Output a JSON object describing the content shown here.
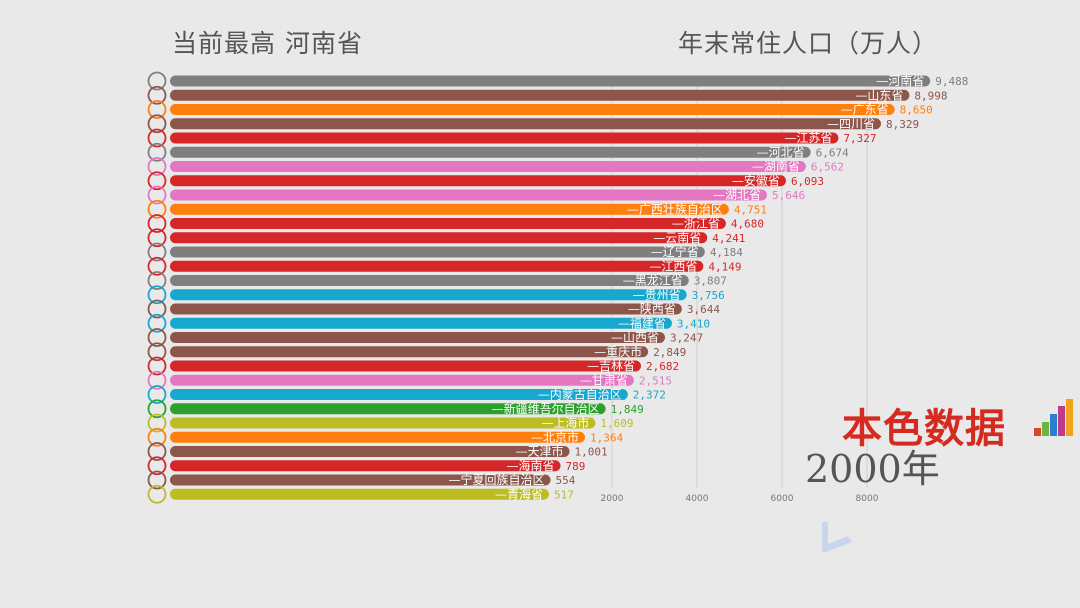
{
  "header": {
    "leader_label": "当前最高  河南省",
    "metric_title": "年末常住人口（万人）"
  },
  "brand": {
    "name": "本色数据",
    "icon": "bar-chart-logo-icon"
  },
  "period": {
    "label": "2000年"
  },
  "chart_data": {
    "type": "bar",
    "orientation": "horizontal",
    "title": "年末常住人口（万人）",
    "year": "2000年",
    "categories": [
      "河南省",
      "山东省",
      "广东省",
      "四川省",
      "江苏省",
      "河北省",
      "湖南省",
      "安徽省",
      "湖北省",
      "广西壮族自治区",
      "浙江省",
      "云南省",
      "辽宁省",
      "江西省",
      "黑龙江省",
      "贵州省",
      "陕西省",
      "福建省",
      "山西省",
      "重庆市",
      "吉林省",
      "甘肃省",
      "内蒙古自治区",
      "新疆维吾尔自治区",
      "上海市",
      "北京市",
      "天津市",
      "海南省",
      "宁夏回族自治区",
      "青海省"
    ],
    "values": [
      9488,
      8998,
      8650,
      8329,
      7327,
      6674,
      6562,
      6093,
      5646,
      4751,
      4680,
      4241,
      4184,
      4149,
      3807,
      3756,
      3644,
      3410,
      3247,
      2849,
      2682,
      2515,
      2372,
      1849,
      1609,
      1364,
      1001,
      789,
      554,
      517
    ],
    "value_labels": [
      "9,488",
      "8,998",
      "8,650",
      "8,329",
      "7,327",
      "6,674",
      "6,562",
      "6,093",
      "5,646",
      "4,751",
      "4,680",
      "4,241",
      "4,184",
      "4,149",
      "3,807",
      "3,756",
      "3,644",
      "3,410",
      "3,247",
      "2,849",
      "2,682",
      "2,515",
      "2,372",
      "1,849",
      "1,609",
      "1,364",
      "1,001",
      "789",
      "554",
      "517"
    ],
    "colors": [
      "#7f7f7f",
      "#8c564b",
      "#ff7f0e",
      "#8c564b",
      "#d62728",
      "#7f7f7f",
      "#e377c2",
      "#d62728",
      "#e377c2",
      "#ff7f0e",
      "#d62728",
      "#d62728",
      "#7f7f7f",
      "#d62728",
      "#7f7f7f",
      "#17a8cf",
      "#8c564b",
      "#17a8cf",
      "#8c564b",
      "#8c564b",
      "#d62728",
      "#e377c2",
      "#17a8cf",
      "#2ca02c",
      "#bcbd22",
      "#ff7f0e",
      "#8c564b",
      "#d62728",
      "#8c564b",
      "#bcbd22"
    ],
    "x_ticks": [
      "2000",
      "4000",
      "6000",
      "8000"
    ],
    "x_tick_values": [
      2000,
      4000,
      6000,
      8000
    ],
    "grid": true
  }
}
